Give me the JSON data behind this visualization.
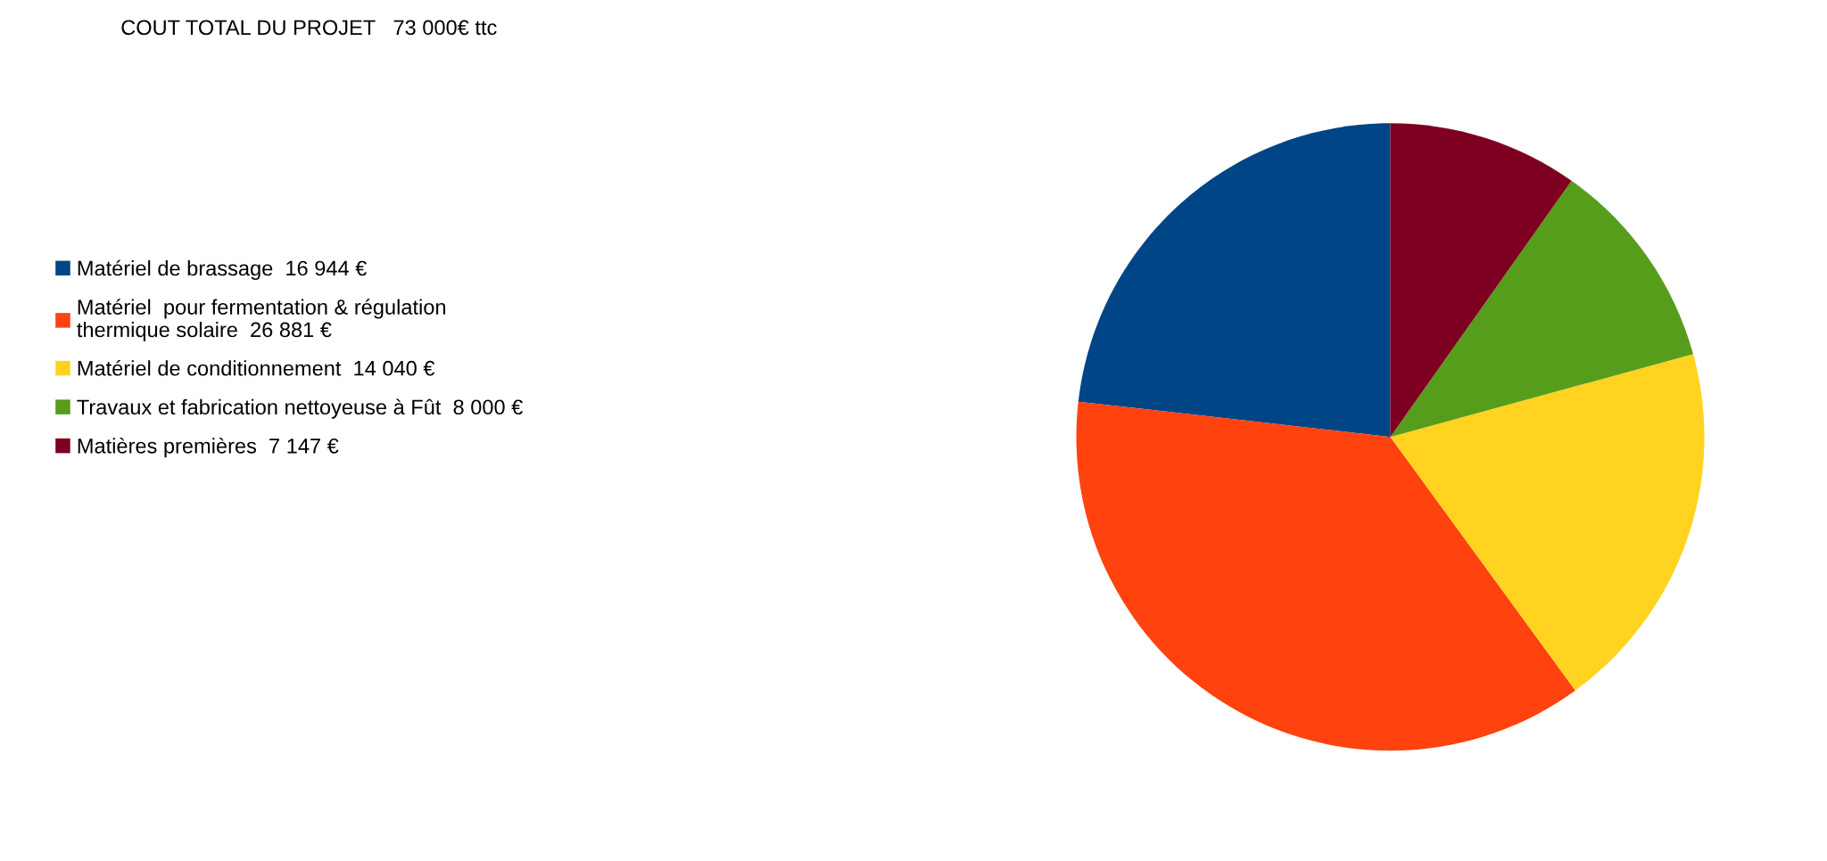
{
  "chart_data": {
    "type": "pie",
    "title": "COUT TOTAL DU PROJET   73 000€ ttc",
    "categories": [
      "Matériel de brassage  16 944 €",
      "Matériel  pour fermentation & régulation\nthermique solaire  26 881 €",
      "Matériel de conditionnement  14 040 €",
      "Travaux et fabrication nettoyeuse à Fût  8 000 €",
      "Matières premières  7 147 €"
    ],
    "values": [
      16944,
      26881,
      14040,
      8000,
      7147
    ],
    "colors": [
      "#004586",
      "#ff420e",
      "#ffd320",
      "#579d1c",
      "#7e0021"
    ],
    "legend": "left"
  }
}
